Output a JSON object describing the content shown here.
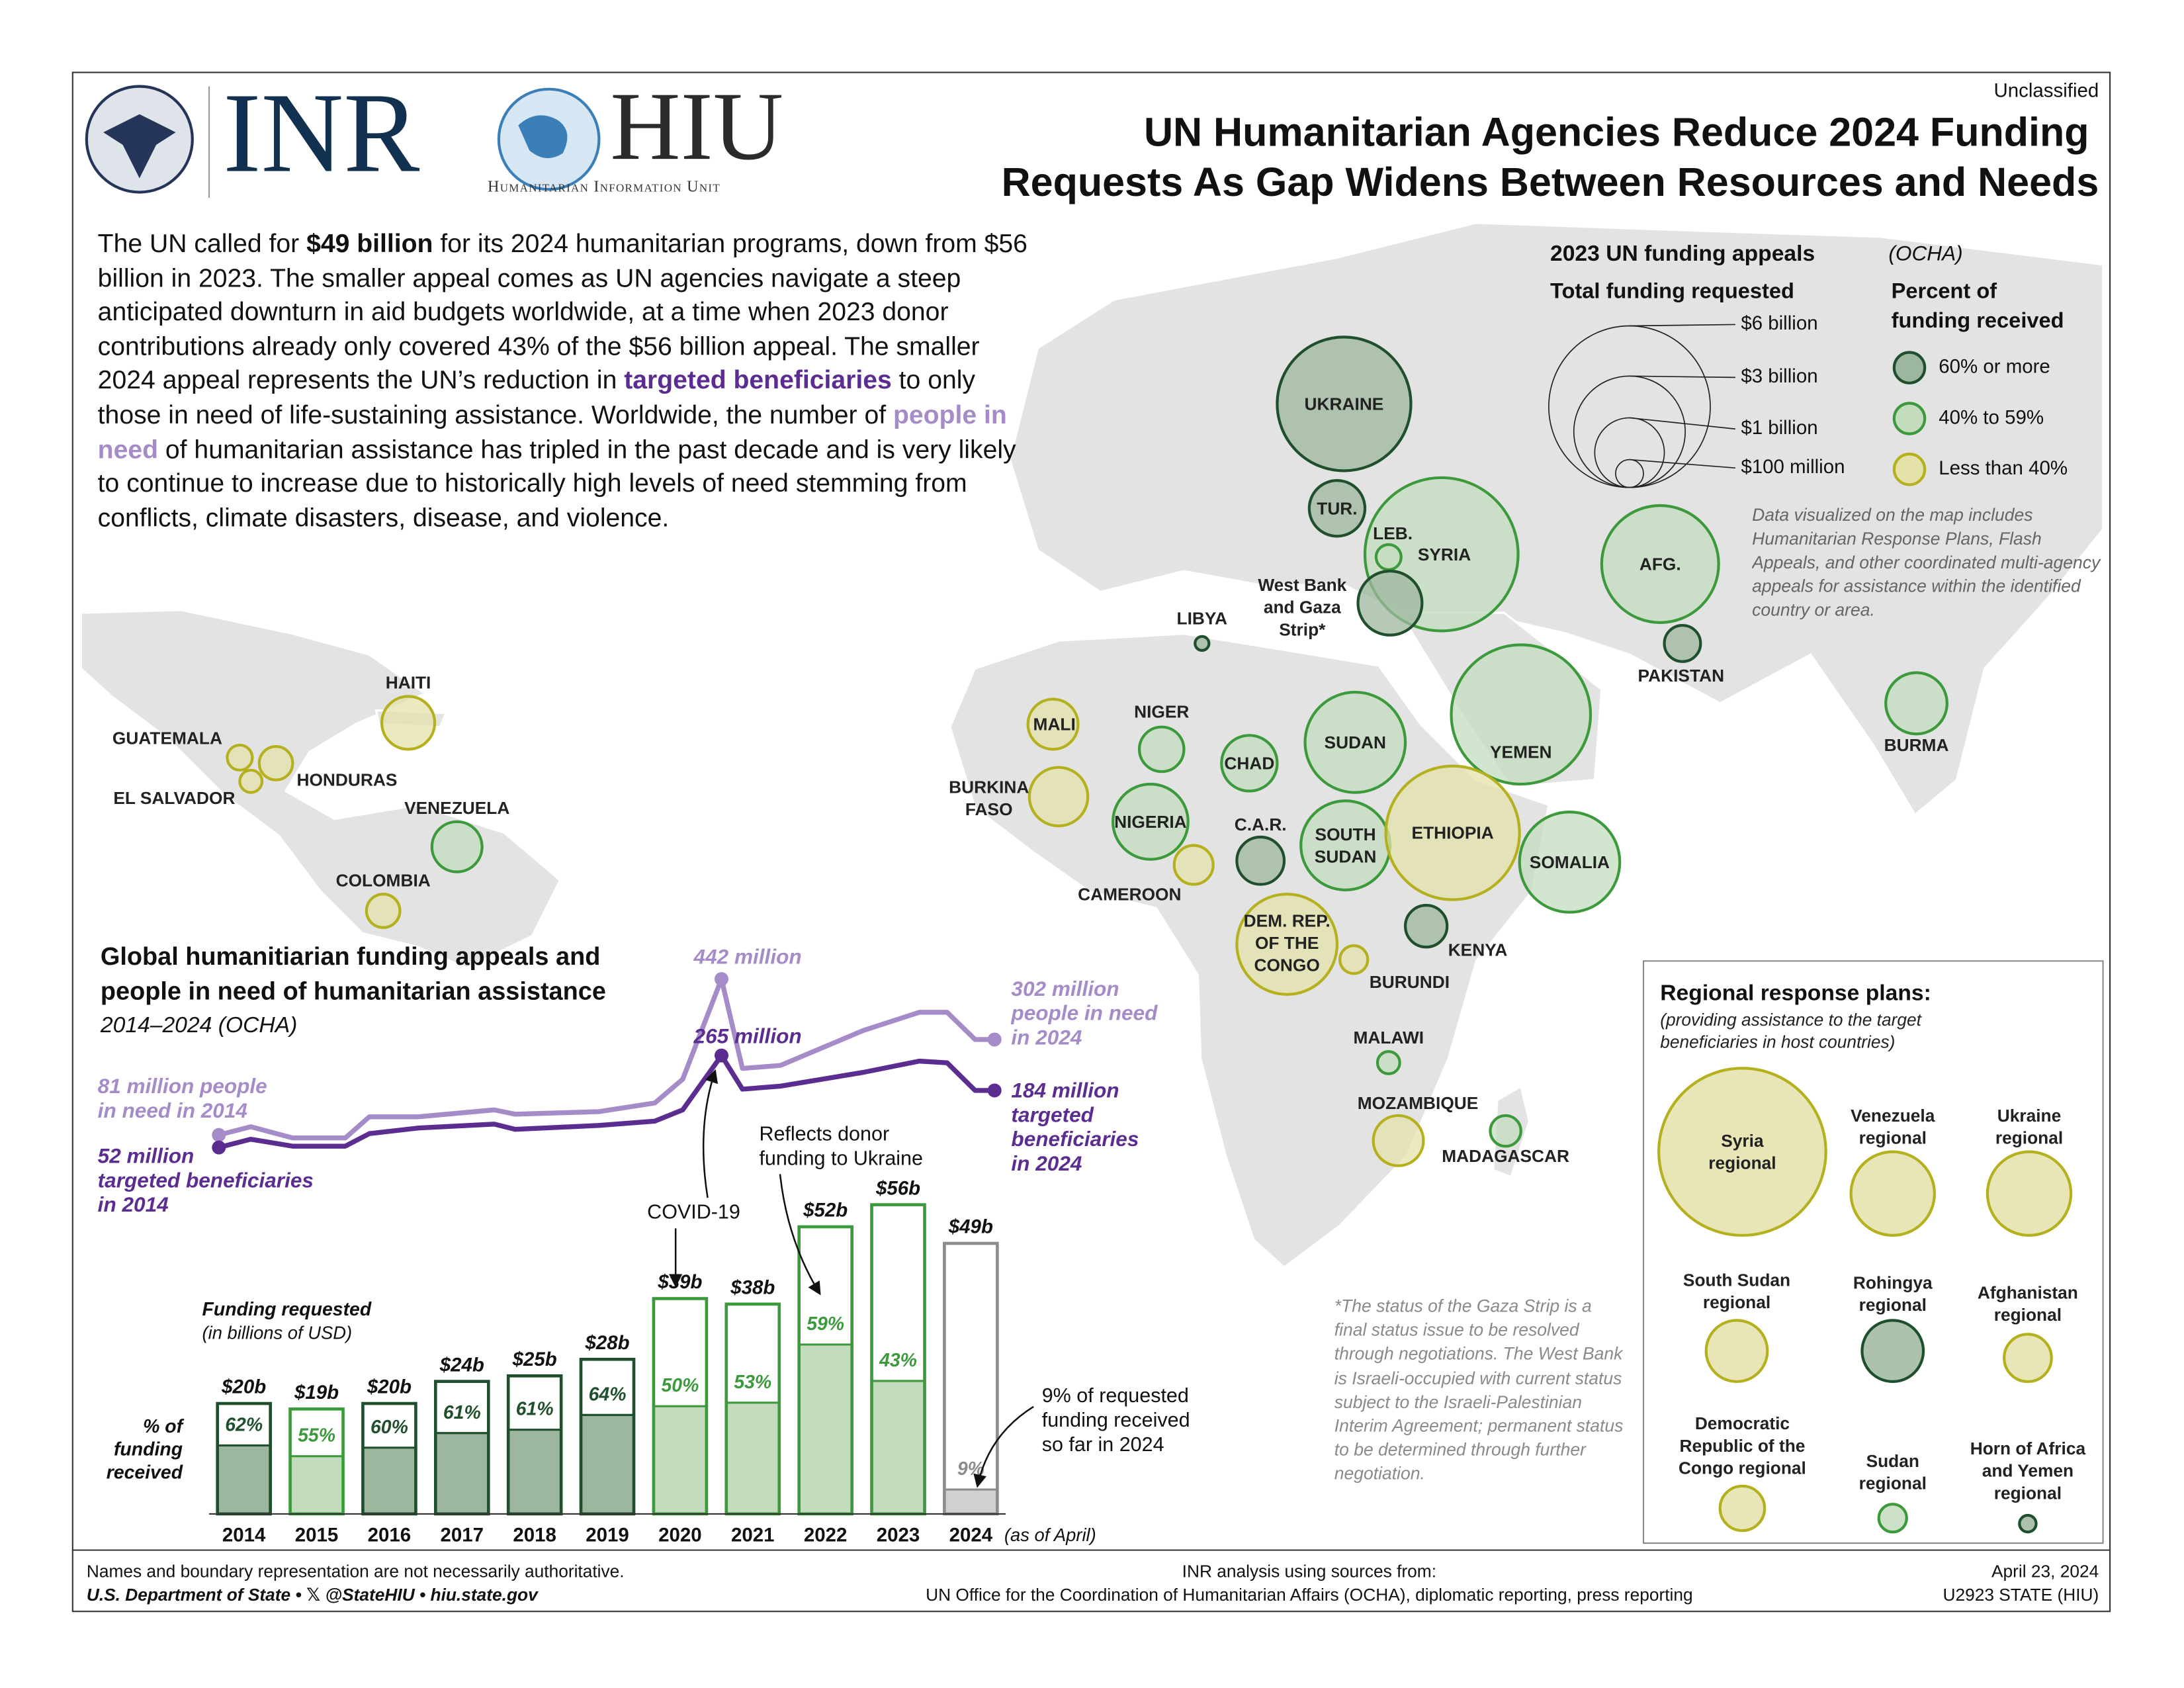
{
  "header": {
    "classification": "Unclassified",
    "org1": "INR",
    "org2": "HIU",
    "org2_sub": "Humanitarian Information Unit",
    "title_line1": "UN Humanitarian Agencies Reduce 2024 Funding",
    "title_line2": "Requests As Gap Widens Between Resources and Needs"
  },
  "intro": {
    "segments": [
      {
        "text": "The UN called for ",
        "style": "plain"
      },
      {
        "text": "$49 billion",
        "style": "bold"
      },
      {
        "text": " for its 2024 humanitarian programs, down from $56 billion in 2023. The smaller appeal comes as UN agencies navigate a steep anticipated downturn in aid budgets worldwide, at a time when 2023 donor contributions already only covered 43% of the $56 billion appeal. The smaller 2024 appeal represents the UN’s reduction in ",
        "style": "plain"
      },
      {
        "text": "targeted beneficiaries",
        "style": "targeted"
      },
      {
        "text": " to only those in need of life-sustaining assistance. Worldwide, the number of ",
        "style": "plain"
      },
      {
        "text": "people in need",
        "style": "need"
      },
      {
        "text": " of humanitarian assistance has tripled in the past decade and is very likely to continue to increase due to historically high levels of need stemming from conflicts, climate disasters, disease, and violence.",
        "style": "plain"
      }
    ]
  },
  "map": {
    "title": "2023 UN funding appeals",
    "title_source": "(OCHA)",
    "size_legend_title": "Total funding requested",
    "size_legend": [
      "$6 billion",
      "$3 billion",
      "$1 billion",
      "$100 million"
    ],
    "color_legend_title": [
      "Percent of",
      "funding received"
    ],
    "categories": [
      {
        "label": "60% or more",
        "stroke": "#1f4f2c",
        "fill": "#9db79f"
      },
      {
        "label": "40% to 59%",
        "stroke": "#3c9a3c",
        "fill": "#c3dcbd"
      },
      {
        "label": "Less than 40%",
        "stroke": "#b4b01e",
        "fill": "#e4e1a9"
      }
    ],
    "note": "Data visualized on the map includes Humanitarian Response Plans, Flash Appeals, and other coordinated multi-agency appeals for assistance within the identified country or area.",
    "countries": [
      {
        "name": [
          "UKRAINE"
        ],
        "category": 0
      },
      {
        "name": [
          "TUR."
        ],
        "category": 0
      },
      {
        "name": [
          "SYRIA"
        ],
        "category": 1
      },
      {
        "name": [
          "LEB."
        ],
        "category": 1
      },
      {
        "name": [
          "West Bank",
          "and Gaza",
          "Strip*"
        ],
        "category": 0
      },
      {
        "name": [
          "AFG."
        ],
        "category": 1
      },
      {
        "name": [
          "PAKISTAN"
        ],
        "category": 0
      },
      {
        "name": [
          "LIBYA"
        ],
        "category": 0
      },
      {
        "name": [
          "YEMEN"
        ],
        "category": 1
      },
      {
        "name": [
          "BURMA"
        ],
        "category": 1
      },
      {
        "name": [
          "HAITI"
        ],
        "category": 2
      },
      {
        "name": [
          "GUATEMALA"
        ],
        "category": 2
      },
      {
        "name": [
          "HONDURAS"
        ],
        "category": 2
      },
      {
        "name": [
          "EL SALVADOR"
        ],
        "category": 2
      },
      {
        "name": [
          "VENEZUELA"
        ],
        "category": 1
      },
      {
        "name": [
          "COLOMBIA"
        ],
        "category": 2
      },
      {
        "name": [
          "MALI"
        ],
        "category": 2
      },
      {
        "name": [
          "NIGER"
        ],
        "category": 1
      },
      {
        "name": [
          "CHAD"
        ],
        "category": 1
      },
      {
        "name": [
          "SUDAN"
        ],
        "category": 1
      },
      {
        "name": [
          "BURKINA",
          "FASO"
        ],
        "category": 2
      },
      {
        "name": [
          "NIGERIA"
        ],
        "category": 1
      },
      {
        "name": [
          "C.A.R."
        ],
        "category": 0
      },
      {
        "name": [
          "SOUTH",
          "SUDAN"
        ],
        "category": 1
      },
      {
        "name": [
          "ETHIOPIA"
        ],
        "category": 2
      },
      {
        "name": [
          "SOMALIA"
        ],
        "category": 1
      },
      {
        "name": [
          "CAMEROON"
        ],
        "category": 2
      },
      {
        "name": [
          "DEM. REP.",
          "OF THE",
          "CONGO"
        ],
        "category": 2
      },
      {
        "name": [
          "KENYA"
        ],
        "category": 0
      },
      {
        "name": [
          "BURUNDI"
        ],
        "category": 2
      },
      {
        "name": [
          "MALAWI"
        ],
        "category": 1
      },
      {
        "name": [
          "MOZAMBIQUE"
        ],
        "category": 2
      },
      {
        "name": [
          "MADAGASCAR"
        ],
        "category": 1
      }
    ]
  },
  "regional": {
    "title": "Regional response plans:",
    "subtitle": [
      "(providing assistance to the target",
      "beneficiaries in host countries)"
    ],
    "plans": [
      {
        "name": [
          "Syria",
          "regional"
        ],
        "category": 2
      },
      {
        "name": [
          "Venezuela",
          "regional"
        ],
        "category": 2
      },
      {
        "name": [
          "Ukraine",
          "regional"
        ],
        "category": 2
      },
      {
        "name": [
          "South Sudan",
          "regional"
        ],
        "category": 2
      },
      {
        "name": [
          "Rohingya",
          "regional"
        ],
        "category": 0
      },
      {
        "name": [
          "Afghanistan",
          "regional"
        ],
        "category": 2
      },
      {
        "name": [
          "Democratic",
          "Republic of the",
          "Congo regional"
        ],
        "category": 2
      },
      {
        "name": [
          "Sudan",
          "regional"
        ],
        "category": 1
      },
      {
        "name": [
          "Horn of Africa",
          "and Yemen",
          "regional"
        ],
        "category": 0
      }
    ]
  },
  "gaza_note": "*The status of the Gaza Strip is a final status issue to be resolved through negotiations. The West Bank is Israeli-occupied with current status subject to the Israeli-Palestinian Interim Agreement; permanent status to be determined through further negotiation.",
  "chart_data": [
    {
      "type": "line",
      "title": [
        "Global humanitiarian funding appeals and",
        "people in need of humanitarian assistance"
      ],
      "subtitle": "2014–2024 (OCHA)",
      "xlim": [
        2014,
        2024
      ],
      "x": [
        2014.0,
        2014.41,
        2014.95,
        2015.63,
        2015.94,
        2016.57,
        2017.55,
        2017.82,
        2018.9,
        2019.62,
        2019.98,
        2020.48,
        2020.75,
        2021.24,
        2022.31,
        2023.03,
        2023.39,
        2023.75,
        2024.0
      ],
      "series": [
        {
          "name": "people in need",
          "color": "#a58cc8",
          "values": [
            81,
            100,
            74,
            74,
            123,
            123,
            139,
            129,
            135,
            155,
            210,
            442,
            235,
            242,
            323,
            365,
            365,
            302,
            302
          ]
        },
        {
          "name": "targeted beneficiaries",
          "color": "#5b2d91",
          "values": [
            52,
            71,
            55,
            55,
            84,
            97,
            106,
            94,
            103,
            113,
            139,
            265,
            187,
            194,
            226,
            252,
            248,
            184,
            184
          ]
        }
      ],
      "annotations": [
        {
          "series": 0,
          "lines": [
            "81 million people",
            "in need in 2014"
          ]
        },
        {
          "series": 1,
          "lines": [
            "52 million",
            "targeted beneficiaries",
            "in 2014"
          ]
        },
        {
          "series": 0,
          "lines": [
            "442 million"
          ]
        },
        {
          "series": 1,
          "lines": [
            "265 million"
          ]
        },
        {
          "series": 0,
          "lines": [
            "302 million",
            "people in need",
            "in 2024"
          ]
        },
        {
          "series": 1,
          "lines": [
            "184 million",
            "targeted",
            "beneficiaries",
            "in 2024"
          ]
        }
      ]
    },
    {
      "type": "bar",
      "categories": [
        "2014",
        "2015",
        "2016",
        "2017",
        "2018",
        "2019",
        "2020",
        "2021",
        "2022",
        "2023",
        "2024"
      ],
      "values": [
        20,
        19,
        20,
        24,
        25,
        28,
        39,
        38,
        52,
        56,
        49
      ],
      "value_labels": [
        "$20b",
        "$19b",
        "$20b",
        "$24b",
        "$25b",
        "$28b",
        "$39b",
        "$38b",
        "$52b",
        "$56b",
        "$49b"
      ],
      "percent_received": [
        62,
        55,
        60,
        61,
        61,
        64,
        50,
        53,
        59,
        43,
        9
      ],
      "percent_labels": [
        "62%",
        "55%",
        "60%",
        "61%",
        "61%",
        "64%",
        "50%",
        "53%",
        "59%",
        "43%",
        "9%"
      ],
      "colors": [
        "#1f4f2c",
        "#3c9a3c",
        "#1f4f2c",
        "#1f4f2c",
        "#1f4f2c",
        "#1f4f2c",
        "#3c9a3c",
        "#3c9a3c",
        "#3c9a3c",
        "#3c9a3c",
        "#8c8c8c"
      ],
      "fills": [
        "#9db79f",
        "#c3dcbd",
        "#9db79f",
        "#9db79f",
        "#9db79f",
        "#9db79f",
        "#c3dcbd",
        "#c3dcbd",
        "#c3dcbd",
        "#c3dcbd",
        "#d0d0d0"
      ],
      "y_label": "Funding requested",
      "y_sublabel": "(in billions of USD)",
      "percent_title": [
        "% of",
        "funding",
        "received"
      ],
      "category_note": "(as of April)",
      "annotations": [
        {
          "lines": [
            "COVID-19"
          ]
        },
        {
          "lines": [
            "Reflects donor",
            "funding to Ukraine"
          ]
        },
        {
          "lines": [
            "9% of requested",
            "funding received",
            "so far in 2024"
          ]
        }
      ]
    }
  ],
  "footer": {
    "left": [
      "Names and boundary representation are not necessarily authoritative.",
      "U.S. Department of State •  𝕏 @StateHIU • hiu.state.gov"
    ],
    "center": [
      "INR analysis using sources from:",
      "UN Office for the Coordination of Humanitarian Affairs (OCHA), diplomatic reporting, press reporting"
    ],
    "right": [
      "April 23, 2024",
      "U2923 STATE (HIU)"
    ]
  }
}
